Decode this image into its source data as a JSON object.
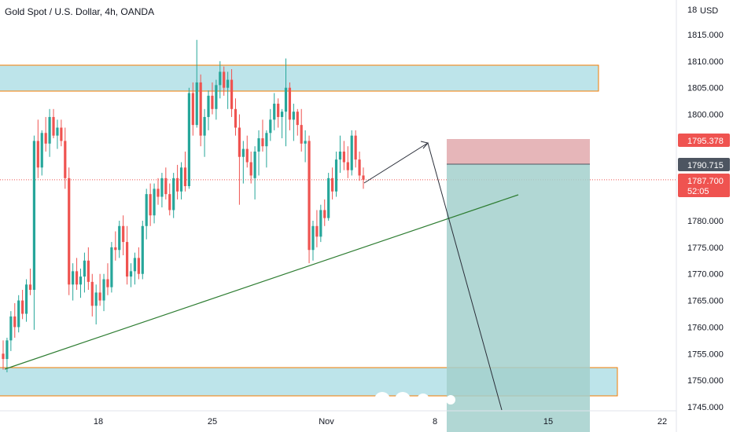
{
  "header": {
    "symbol_title": "Gold Spot / U.S. Dollar, 4h, OANDA",
    "currency": "USD",
    "top_clipped_label": "18"
  },
  "colors": {
    "up": "#26a69a",
    "down": "#ef5350",
    "zone_fill": "#b2dfe6",
    "zone_border": "#f57c00",
    "trendline": "#2e7d32",
    "stop_zone": "#e0a4a8",
    "target_zone": "#a3d0cd",
    "current_price": "#ef5350",
    "entry_price": "#4d5561"
  },
  "badges": {
    "stop": "1795.378",
    "entry": "1790.715",
    "current_price": "1787.700",
    "countdown": "52:05"
  },
  "chart_data": {
    "type": "candlestick",
    "title": "Gold Spot / U.S. Dollar, 4h, OANDA",
    "ylabel": "USD",
    "ylim": [
      1744,
      1819
    ],
    "y_ticks": [
      "1745.000",
      "1750.000",
      "1755.000",
      "1760.000",
      "1765.000",
      "1770.000",
      "1775.000",
      "1780.000",
      "1785.000",
      "1790.000",
      "1795.000",
      "1800.000",
      "1805.000",
      "1810.000",
      "1815.000"
    ],
    "x_ticks": [
      "18",
      "25",
      "Nov",
      "8",
      "15",
      "22"
    ],
    "current_price": 1787.7,
    "candles_up_down_sequence_note": "",
    "candles": [
      [
        1755.0,
        1757.5,
        1752.0,
        1754.0
      ],
      [
        1754.0,
        1758.0,
        1751.5,
        1757.5
      ],
      [
        1757.5,
        1763.0,
        1755.5,
        1762.0
      ],
      [
        1762.0,
        1764.5,
        1758.0,
        1760.0
      ],
      [
        1760.0,
        1766.0,
        1759.0,
        1765.0
      ],
      [
        1765.0,
        1767.0,
        1761.5,
        1762.5
      ],
      [
        1762.5,
        1769.0,
        1761.0,
        1768.0
      ],
      [
        1768.0,
        1771.0,
        1766.0,
        1767.0
      ],
      [
        1767.0,
        1796.0,
        1759.5,
        1795.0
      ],
      [
        1795.0,
        1799.0,
        1788.0,
        1790.0
      ],
      [
        1790.0,
        1797.0,
        1788.5,
        1796.5
      ],
      [
        1796.5,
        1799.5,
        1793.0,
        1794.5
      ],
      [
        1794.5,
        1801.0,
        1792.0,
        1799.5
      ],
      [
        1799.5,
        1801.0,
        1795.5,
        1796.0
      ],
      [
        1796.0,
        1799.0,
        1793.5,
        1797.5
      ],
      [
        1797.5,
        1799.0,
        1794.0,
        1795.0
      ],
      [
        1795.0,
        1797.5,
        1786.0,
        1788.0
      ],
      [
        1788.0,
        1790.0,
        1766.0,
        1768.0
      ],
      [
        1768.0,
        1772.0,
        1765.0,
        1770.5
      ],
      [
        1770.5,
        1773.0,
        1767.0,
        1768.0
      ],
      [
        1768.0,
        1771.0,
        1765.5,
        1769.5
      ],
      [
        1769.5,
        1774.0,
        1766.5,
        1772.5
      ],
      [
        1772.5,
        1775.0,
        1767.0,
        1768.5
      ],
      [
        1768.5,
        1770.0,
        1762.0,
        1764.0
      ],
      [
        1764.0,
        1768.0,
        1760.5,
        1766.5
      ],
      [
        1766.5,
        1770.0,
        1764.0,
        1765.0
      ],
      [
        1765.0,
        1770.0,
        1763.0,
        1769.0
      ],
      [
        1769.0,
        1772.0,
        1766.0,
        1767.5
      ],
      [
        1767.5,
        1776.0,
        1766.5,
        1775.0
      ],
      [
        1775.0,
        1778.0,
        1772.5,
        1774.5
      ],
      [
        1774.5,
        1780.0,
        1773.0,
        1779.0
      ],
      [
        1779.0,
        1781.0,
        1773.5,
        1776.0
      ],
      [
        1776.0,
        1779.0,
        1768.0,
        1769.5
      ],
      [
        1769.5,
        1772.0,
        1767.5,
        1770.5
      ],
      [
        1770.5,
        1774.0,
        1768.0,
        1773.0
      ],
      [
        1773.0,
        1775.0,
        1769.0,
        1770.0
      ],
      [
        1770.0,
        1780.0,
        1769.0,
        1779.0
      ],
      [
        1779.0,
        1786.0,
        1776.5,
        1785.0
      ],
      [
        1785.0,
        1787.0,
        1779.0,
        1781.0
      ],
      [
        1781.0,
        1787.0,
        1779.5,
        1786.0
      ],
      [
        1786.0,
        1788.0,
        1783.0,
        1784.5
      ],
      [
        1784.5,
        1789.0,
        1782.5,
        1788.0
      ],
      [
        1788.0,
        1790.0,
        1784.0,
        1785.0
      ],
      [
        1785.0,
        1787.0,
        1781.0,
        1782.0
      ],
      [
        1782.0,
        1789.0,
        1780.5,
        1788.0
      ],
      [
        1788.0,
        1790.5,
        1784.0,
        1785.5
      ],
      [
        1785.5,
        1791.0,
        1784.0,
        1790.0
      ],
      [
        1790.0,
        1793.0,
        1785.5,
        1786.5
      ],
      [
        1786.5,
        1805.0,
        1786.0,
        1804.0
      ],
      [
        1804.0,
        1806.0,
        1796.0,
        1798.0
      ],
      [
        1798.0,
        1814.0,
        1797.5,
        1806.0
      ],
      [
        1806.0,
        1807.5,
        1794.0,
        1796.0
      ],
      [
        1796.0,
        1801.0,
        1792.0,
        1799.5
      ],
      [
        1799.5,
        1804.5,
        1797.0,
        1803.5
      ],
      [
        1803.5,
        1806.0,
        1800.0,
        1801.0
      ],
      [
        1801.0,
        1806.5,
        1799.0,
        1805.5
      ],
      [
        1805.5,
        1810.0,
        1803.0,
        1808.0
      ],
      [
        1808.0,
        1809.0,
        1803.5,
        1805.0
      ],
      [
        1805.0,
        1808.0,
        1801.0,
        1806.5
      ],
      [
        1806.5,
        1808.5,
        1799.5,
        1801.0
      ],
      [
        1801.0,
        1803.0,
        1796.0,
        1797.5
      ],
      [
        1797.5,
        1800.0,
        1783.0,
        1792.0
      ],
      [
        1792.0,
        1795.0,
        1787.0,
        1793.5
      ],
      [
        1793.5,
        1796.0,
        1790.0,
        1791.0
      ],
      [
        1791.0,
        1793.0,
        1787.0,
        1788.5
      ],
      [
        1788.0,
        1794.0,
        1784.0,
        1793.0
      ],
      [
        1793.0,
        1797.0,
        1788.5,
        1795.5
      ],
      [
        1795.5,
        1799.0,
        1793.0,
        1794.0
      ],
      [
        1794.0,
        1797.0,
        1790.0,
        1796.5
      ],
      [
        1796.5,
        1801.0,
        1795.0,
        1799.0
      ],
      [
        1799.0,
        1804.0,
        1797.0,
        1802.0
      ],
      [
        1802.0,
        1803.0,
        1797.5,
        1799.5
      ],
      [
        1799.5,
        1801.0,
        1795.5,
        1800.5
      ],
      [
        1800.5,
        1810.5,
        1794.0,
        1805.0
      ],
      [
        1805.0,
        1806.0,
        1797.0,
        1799.0
      ],
      [
        1799.0,
        1802.0,
        1795.0,
        1800.5
      ],
      [
        1800.5,
        1801.0,
        1796.0,
        1798.0
      ],
      [
        1798.0,
        1801.0,
        1793.0,
        1794.5
      ],
      [
        1794.5,
        1797.0,
        1791.0,
        1795.0
      ],
      [
        1795.0,
        1796.0,
        1772.0,
        1774.5
      ],
      [
        1774.5,
        1780.0,
        1772.5,
        1779.0
      ],
      [
        1779.0,
        1782.0,
        1775.0,
        1777.0
      ],
      [
        1777.0,
        1783.0,
        1776.0,
        1782.0
      ],
      [
        1782.0,
        1784.0,
        1779.0,
        1780.5
      ],
      [
        1780.5,
        1789.0,
        1780.0,
        1788.0
      ],
      [
        1788.0,
        1790.0,
        1784.0,
        1785.5
      ],
      [
        1785.5,
        1793.0,
        1784.5,
        1791.5
      ],
      [
        1791.5,
        1796.0,
        1789.0,
        1793.0
      ],
      [
        1793.0,
        1795.0,
        1789.5,
        1791.0
      ],
      [
        1791.0,
        1794.0,
        1788.0,
        1789.5
      ],
      [
        1789.5,
        1797.0,
        1788.5,
        1796.0
      ],
      [
        1796.0,
        1797.0,
        1790.0,
        1791.5
      ],
      [
        1791.5,
        1793.0,
        1787.5,
        1788.5
      ],
      [
        1788.5,
        1790.0,
        1786.0,
        1787.7
      ]
    ]
  }
}
